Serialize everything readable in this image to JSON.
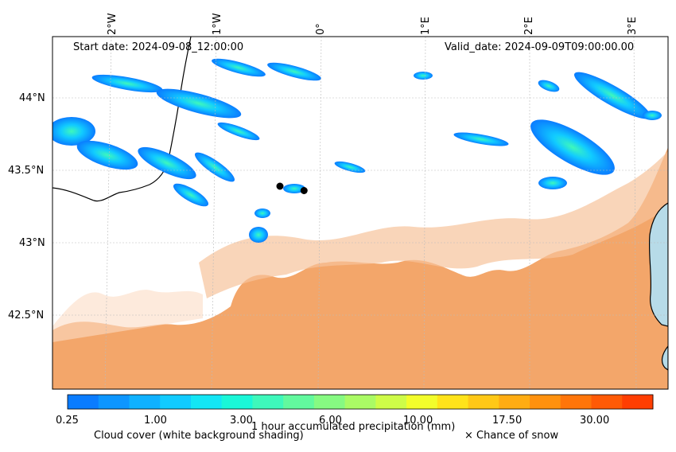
{
  "map": {
    "start_date": "Start date: 2024-09-08_12:00:00",
    "valid_date": "Valid_date: 2024-09-09T09:00:00.00",
    "lon_labels": [
      "2°W",
      "1°W",
      "0°",
      "1°E",
      "2°E",
      "3°E"
    ],
    "lat_labels": [
      "44°N",
      "43.5°N",
      "43°N",
      "42.5°N"
    ],
    "markers": [
      {
        "name": "marker-1",
        "lon": -0.38,
        "lat": 43.39
      },
      {
        "name": "marker-2",
        "lon": -0.15,
        "lat": 43.36
      }
    ]
  },
  "colorbar": {
    "tick_labels": [
      "0.25",
      "1.00",
      "3.00",
      "6.00",
      "10.00",
      "17.50",
      "30.00"
    ],
    "colors": [
      "#0a7cff",
      "#0d96ff",
      "#0fb1ff",
      "#11cbff",
      "#13e6f5",
      "#1af7d8",
      "#3ef8bb",
      "#62f99e",
      "#86fa82",
      "#aafb65",
      "#cefc48",
      "#f2fd2b",
      "#ffe31a",
      "#ffc816",
      "#ffac12",
      "#ff910e",
      "#ff750a",
      "#ff5a06",
      "#ff3e02"
    ],
    "title": "1 hour accumulated precipitation (mm)"
  },
  "legend": {
    "cloud_cover": "Cloud cover (white background shading)",
    "snow": "× Chance of snow"
  },
  "colors": {
    "cloud_fill": "#f3a66a",
    "sea": "#b7dbe8"
  }
}
